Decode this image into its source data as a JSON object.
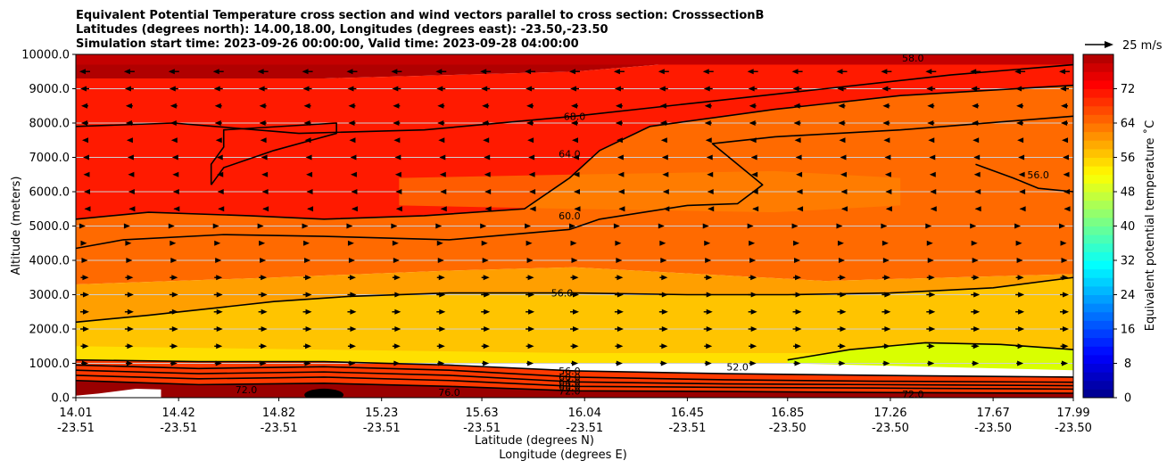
{
  "chart_data": {
    "type": "contour",
    "title_lines": [
      "Equivalent Potential Temperature cross section and wind vectors parallel to cross section: CrosssectionB",
      "Latitudes (degrees north): 14.00,18.00, Longitudes (degrees east): -23.50,-23.50",
      "Simulation start time: 2023-09-26 00:00:00, Valid time: 2023-09-28 04:00:00"
    ],
    "xlabel_1": "Latitude (degrees N)",
    "xlabel_2": "Longitude (degrees E)",
    "ylabel": "Altitude (meters)",
    "ylim": [
      0,
      10000
    ],
    "y_ticks": [
      0,
      1000,
      2000,
      3000,
      4000,
      5000,
      6000,
      7000,
      8000,
      9000,
      10000
    ],
    "y_tick_labels": [
      "0.0",
      "1000.0",
      "2000.0",
      "3000.0",
      "4000.0",
      "5000.0",
      "6000.0",
      "7000.0",
      "8000.0",
      "9000.0",
      "10000.0"
    ],
    "xlim": [
      14.01,
      17.99
    ],
    "x_ticks": [
      14.01,
      14.42,
      14.82,
      15.23,
      15.63,
      16.04,
      16.45,
      16.85,
      17.26,
      17.67,
      17.99
    ],
    "x_tick_labels_lat": [
      "14.01",
      "14.42",
      "14.82",
      "15.23",
      "15.63",
      "16.04",
      "16.45",
      "16.85",
      "17.26",
      "17.67",
      "17.99"
    ],
    "x_tick_labels_lon": [
      "-23.51",
      "-23.51",
      "-23.51",
      "-23.51",
      "-23.51",
      "-23.51",
      "-23.51",
      "-23.50",
      "-23.50",
      "-23.50",
      "-23.50"
    ],
    "grid": "horizontal",
    "colorbar": {
      "label": "Equivalent potential temperature ˚C",
      "range": [
        0,
        80
      ],
      "ticks": [
        0,
        8,
        16,
        24,
        32,
        40,
        48,
        56,
        64,
        72
      ],
      "tick_labels": [
        "0",
        "8",
        "16",
        "24",
        "32",
        "40",
        "48",
        "56",
        "64",
        "72"
      ]
    },
    "quiver_key": {
      "label": "25 m/s",
      "speed": 25
    },
    "contour_line_labels": [
      {
        "text": "68.0",
        "x": 16.0,
        "y": 8200
      },
      {
        "text": "64.0",
        "x": 15.98,
        "y": 7100
      },
      {
        "text": "60.0",
        "x": 15.98,
        "y": 5300
      },
      {
        "text": "56.0",
        "x": 15.95,
        "y": 3050
      },
      {
        "text": "56.0",
        "x": 17.85,
        "y": 6500
      },
      {
        "text": "58.0",
        "x": 17.35,
        "y": 9900
      },
      {
        "text": "52.0",
        "x": 16.65,
        "y": 900
      },
      {
        "text": "56.0",
        "x": 15.98,
        "y": 780
      },
      {
        "text": "60.0",
        "x": 15.98,
        "y": 600
      },
      {
        "text": "64.0",
        "x": 15.98,
        "y": 460
      },
      {
        "text": "68.0",
        "x": 15.98,
        "y": 330
      },
      {
        "text": "72.0",
        "x": 15.98,
        "y": 200
      },
      {
        "text": "72.0",
        "x": 14.69,
        "y": 230
      },
      {
        "text": "76.0",
        "x": 15.5,
        "y": 150
      },
      {
        "text": "72.0",
        "x": 17.35,
        "y": 100
      }
    ],
    "contour_lines": [
      {
        "level": 56,
        "points": [
          [
            14.01,
            2200
          ],
          [
            14.3,
            2400
          ],
          [
            14.55,
            2600
          ],
          [
            14.8,
            2800
          ],
          [
            15.1,
            2950
          ],
          [
            15.5,
            3050
          ],
          [
            16.0,
            3050
          ],
          [
            16.45,
            3000
          ],
          [
            16.85,
            3000
          ],
          [
            17.26,
            3050
          ],
          [
            17.67,
            3200
          ],
          [
            17.99,
            3500
          ]
        ]
      },
      {
        "level": 60,
        "points": [
          [
            14.01,
            4350
          ],
          [
            14.2,
            4600
          ],
          [
            14.6,
            4750
          ],
          [
            15.0,
            4700
          ],
          [
            15.5,
            4600
          ],
          [
            15.98,
            4900
          ],
          [
            16.1,
            5200
          ],
          [
            16.45,
            5600
          ],
          [
            16.65,
            5650
          ],
          [
            16.75,
            6200
          ],
          [
            16.55,
            7400
          ],
          [
            16.8,
            7600
          ],
          [
            17.3,
            7800
          ],
          [
            17.99,
            8200
          ]
        ]
      },
      {
        "level": 64,
        "points": [
          [
            14.01,
            5200
          ],
          [
            14.3,
            5400
          ],
          [
            14.7,
            5300
          ],
          [
            15.0,
            5200
          ],
          [
            15.4,
            5300
          ],
          [
            15.8,
            5500
          ],
          [
            15.98,
            6400
          ],
          [
            16.1,
            7200
          ],
          [
            16.3,
            7900
          ],
          [
            16.8,
            8400
          ],
          [
            17.3,
            8800
          ],
          [
            17.99,
            9100
          ]
        ]
      },
      {
        "level": 64,
        "points": [
          [
            14.55,
            6200
          ],
          [
            14.6,
            6700
          ],
          [
            14.8,
            7200
          ],
          [
            14.95,
            7500
          ],
          [
            15.05,
            7700
          ],
          [
            15.05,
            8000
          ],
          [
            14.6,
            7800
          ],
          [
            14.6,
            7300
          ],
          [
            14.55,
            6800
          ],
          [
            14.55,
            6200
          ]
        ]
      },
      {
        "level": 68,
        "points": [
          [
            14.01,
            7900
          ],
          [
            14.4,
            8000
          ],
          [
            14.9,
            7700
          ],
          [
            15.4,
            7800
          ],
          [
            16.0,
            8200
          ],
          [
            16.5,
            8600
          ],
          [
            17.0,
            9000
          ],
          [
            17.5,
            9400
          ],
          [
            17.99,
            9700
          ]
        ]
      },
      {
        "level": 56,
        "points": [
          [
            17.6,
            6800
          ],
          [
            17.75,
            6400
          ],
          [
            17.85,
            6100
          ],
          [
            17.99,
            6000
          ]
        ]
      },
      {
        "level": 52,
        "points": [
          [
            16.85,
            1100
          ],
          [
            17.1,
            1400
          ],
          [
            17.4,
            1600
          ],
          [
            17.7,
            1550
          ],
          [
            17.99,
            1400
          ]
        ]
      },
      {
        "level": 56,
        "points": [
          [
            14.01,
            1100
          ],
          [
            14.5,
            1050
          ],
          [
            15.0,
            1050
          ],
          [
            15.5,
            950
          ],
          [
            16.0,
            780
          ],
          [
            16.6,
            700
          ],
          [
            17.2,
            650
          ],
          [
            17.99,
            600
          ]
        ]
      },
      {
        "level": 60,
        "points": [
          [
            14.01,
            950
          ],
          [
            14.5,
            850
          ],
          [
            15.0,
            900
          ],
          [
            15.5,
            800
          ],
          [
            16.0,
            600
          ],
          [
            16.6,
            520
          ],
          [
            17.2,
            480
          ],
          [
            17.99,
            450
          ]
        ]
      },
      {
        "level": 64,
        "points": [
          [
            14.01,
            800
          ],
          [
            14.5,
            700
          ],
          [
            15.0,
            750
          ],
          [
            15.5,
            650
          ],
          [
            16.0,
            460
          ],
          [
            16.6,
            400
          ],
          [
            17.2,
            380
          ],
          [
            17.99,
            350
          ]
        ]
      },
      {
        "level": 68,
        "points": [
          [
            14.01,
            650
          ],
          [
            14.5,
            550
          ],
          [
            15.0,
            600
          ],
          [
            15.5,
            500
          ],
          [
            16.0,
            330
          ],
          [
            16.6,
            300
          ],
          [
            17.2,
            280
          ],
          [
            17.99,
            250
          ]
        ]
      },
      {
        "level": 72,
        "points": [
          [
            14.01,
            500
          ],
          [
            14.5,
            380
          ],
          [
            15.0,
            420
          ],
          [
            15.5,
            330
          ],
          [
            16.0,
            200
          ],
          [
            16.6,
            180
          ],
          [
            17.2,
            150
          ],
          [
            17.99,
            130
          ]
        ]
      }
    ],
    "wind_vector_rows": [
      {
        "altitude": 9500,
        "u_m_s": -12
      },
      {
        "altitude": 9000,
        "u_m_s": -10
      },
      {
        "altitude": 8500,
        "u_m_s": -8
      },
      {
        "altitude": 8000,
        "u_m_s": -8
      },
      {
        "altitude": 7500,
        "u_m_s": -6
      },
      {
        "altitude": 7000,
        "u_m_s": -4
      },
      {
        "altitude": 6500,
        "u_m_s": -3
      },
      {
        "altitude": 6000,
        "u_m_s": -2
      },
      {
        "altitude": 5500,
        "u_m_s": -1
      },
      {
        "altitude": 5000,
        "u_m_s": 2
      },
      {
        "altitude": 4500,
        "u_m_s": 5
      },
      {
        "altitude": 4000,
        "u_m_s": 7
      },
      {
        "altitude": 3500,
        "u_m_s": 9
      },
      {
        "altitude": 3000,
        "u_m_s": 10
      },
      {
        "altitude": 2500,
        "u_m_s": 10
      },
      {
        "altitude": 2000,
        "u_m_s": 10
      },
      {
        "altitude": 1500,
        "u_m_s": 9
      },
      {
        "altitude": 1000,
        "u_m_s": 8
      }
    ],
    "colors": {
      "band_top": "#b00000",
      "band_upper": "#ff1a00",
      "band_mid": "#ff6a00",
      "band_lower": "#ff9f00",
      "band_low": "#ffc400",
      "band_surface": "#ffe000",
      "band_green": "#d9ff00",
      "band_near_ground": "#ff3a00",
      "band_ground": "#9a0000"
    }
  }
}
